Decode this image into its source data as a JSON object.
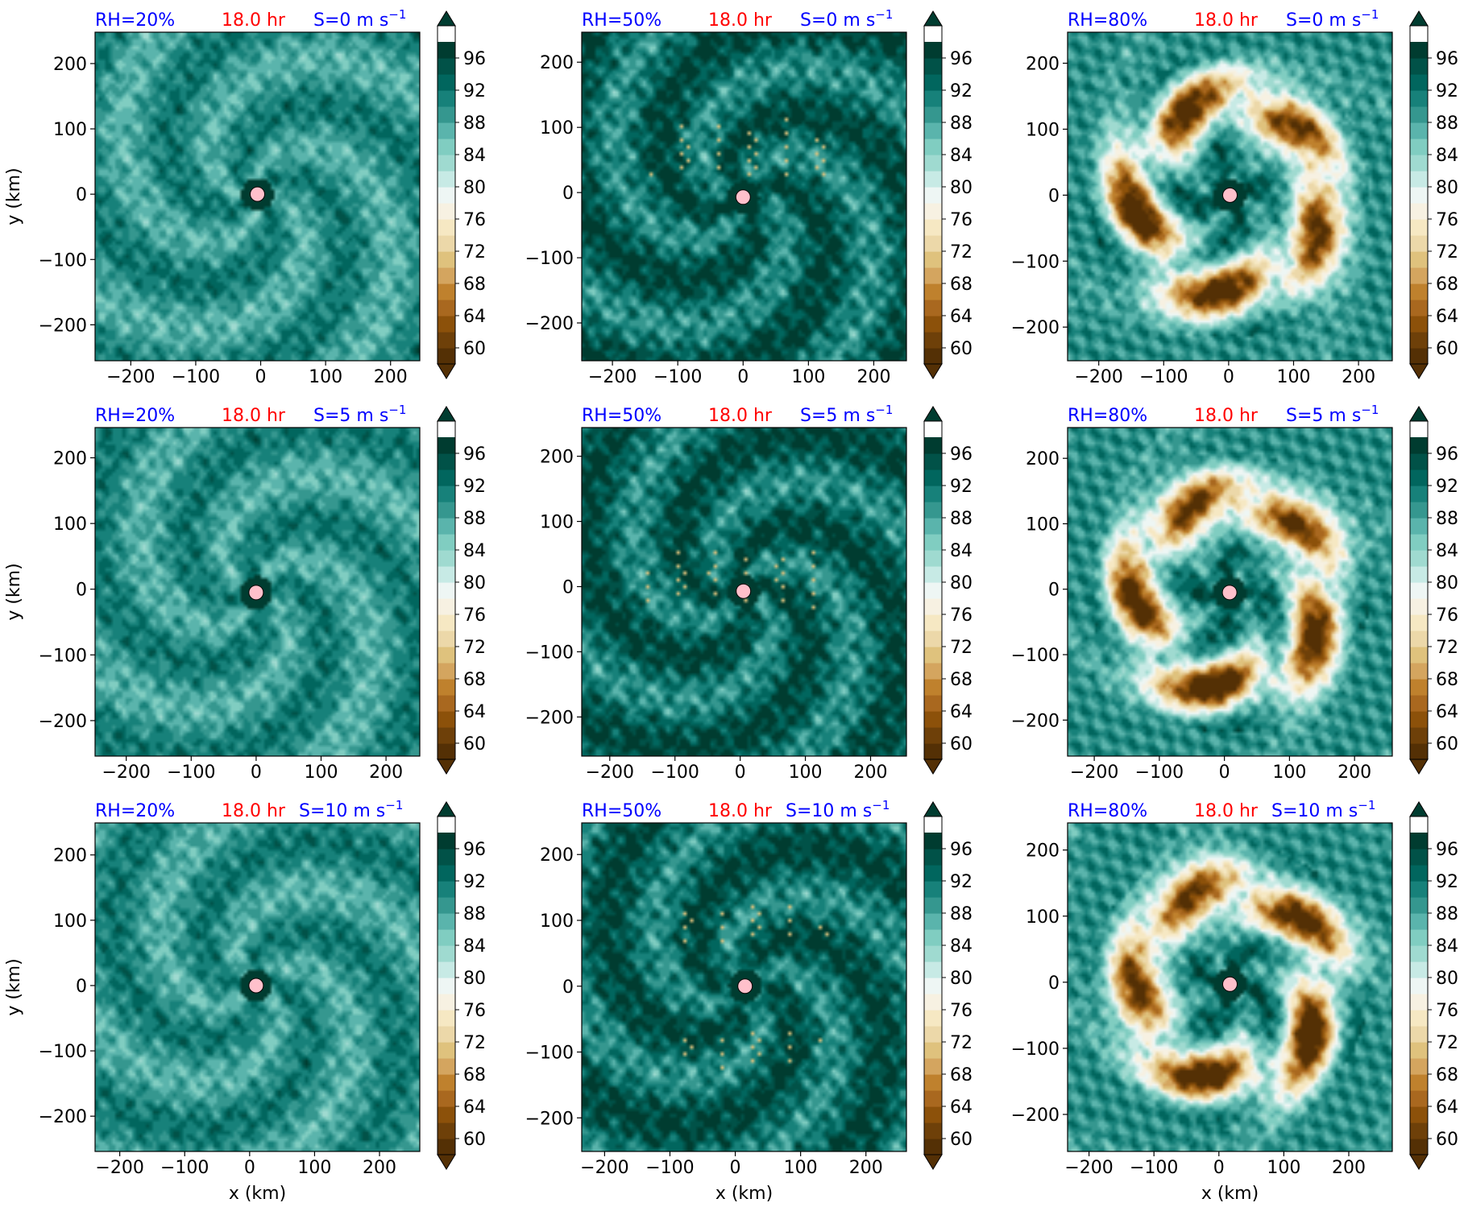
{
  "figure": {
    "colorbar_ticks": [
      60,
      64,
      68,
      72,
      76,
      80,
      84,
      88,
      92,
      96
    ],
    "colormap": [
      "#543005",
      "#6e4009",
      "#8c510a",
      "#a9681f",
      "#bf812d",
      "#d4a55f",
      "#dfc27d",
      "#ecd8a9",
      "#f6e8c3",
      "#f7f1e2",
      "#eef6f4",
      "#c7eae5",
      "#9fdad0",
      "#80cdc1",
      "#5ab4ac",
      "#35978f",
      "#17817a",
      "#01665e",
      "#015248",
      "#003c30"
    ],
    "colors": {
      "rh_label": "#0000ff",
      "time_label": "#ff0000",
      "shear_label": "#0000ff",
      "center_marker": "#ffc0cb"
    },
    "x_axis_label": "x (km)",
    "y_axis_label": "y (km)",
    "shear_unit_text": "m s",
    "shear_unit_exponent": "−1",
    "col_headers": [
      "RH=20%",
      "RH=50%",
      "RH=80%"
    ],
    "time_label": "18.0 hr",
    "row_headers": [
      "S=0",
      "S=5",
      "S=10"
    ]
  },
  "chart_data": [
    {
      "type": "heatmap",
      "rh": "RH=20%",
      "time": "18.0 hr",
      "shear": "S=0",
      "xlim": [
        -255,
        245
      ],
      "ylim": [
        -255,
        248
      ],
      "xticks": [
        -200,
        -100,
        0,
        100,
        200
      ],
      "yticks": [
        -200,
        -100,
        0,
        100,
        200
      ],
      "center": [
        -5,
        0
      ],
      "dry_ring": false
    },
    {
      "type": "heatmap",
      "rh": "RH=50%",
      "time": "18.0 hr",
      "shear": "S=0",
      "xlim": [
        -247,
        250
      ],
      "ylim": [
        -258,
        246
      ],
      "xticks": [
        -200,
        -100,
        0,
        100,
        200
      ],
      "yticks": [
        -200,
        -100,
        0,
        100,
        200
      ],
      "center": [
        0,
        -7
      ],
      "dry_ring": false
    },
    {
      "type": "heatmap",
      "rh": "RH=80%",
      "time": "18.0 hr",
      "shear": "S=0",
      "xlim": [
        -248,
        252
      ],
      "ylim": [
        -251,
        247
      ],
      "xticks": [
        -200,
        -100,
        0,
        100,
        200
      ],
      "yticks": [
        -200,
        -100,
        0,
        100,
        200
      ],
      "center": [
        2,
        0
      ],
      "dry_ring": true
    },
    {
      "type": "heatmap",
      "rh": "RH=20%",
      "time": "18.0 hr",
      "shear": "S=5",
      "xlim": [
        -248,
        252
      ],
      "ylim": [
        -254,
        246
      ],
      "xticks": [
        -200,
        -100,
        0,
        100,
        200
      ],
      "yticks": [
        -200,
        -100,
        0,
        100,
        200
      ],
      "center": [
        0,
        -5
      ],
      "dry_ring": false
    },
    {
      "type": "heatmap",
      "rh": "RH=50%",
      "time": "18.0 hr",
      "shear": "S=5",
      "xlim": [
        -243,
        255
      ],
      "ylim": [
        -260,
        244
      ],
      "xticks": [
        -200,
        -100,
        0,
        100,
        200
      ],
      "yticks": [
        -200,
        -100,
        0,
        100,
        200
      ],
      "center": [
        5,
        -7
      ],
      "dry_ring": false
    },
    {
      "type": "heatmap",
      "rh": "RH=80%",
      "time": "18.0 hr",
      "shear": "S=5",
      "xlim": [
        -241,
        258
      ],
      "ylim": [
        -255,
        247
      ],
      "xticks": [
        -200,
        -100,
        0,
        100,
        200
      ],
      "yticks": [
        -200,
        -100,
        0,
        100,
        200
      ],
      "center": [
        8,
        -5
      ],
      "dry_ring": true
    },
    {
      "type": "heatmap",
      "rh": "RH=20%",
      "time": "18.0 hr",
      "shear": "S=10",
      "xlim": [
        -238,
        262
      ],
      "ylim": [
        -254,
        249
      ],
      "xticks": [
        -200,
        -100,
        0,
        100,
        200
      ],
      "yticks": [
        -200,
        -100,
        0,
        100,
        200
      ],
      "center": [
        10,
        0
      ],
      "dry_ring": false
    },
    {
      "type": "heatmap",
      "rh": "RH=50%",
      "time": "18.0 hr",
      "shear": "S=10",
      "xlim": [
        -235,
        262
      ],
      "ylim": [
        -251,
        248
      ],
      "xticks": [
        -200,
        -100,
        0,
        100,
        200
      ],
      "yticks": [
        -200,
        -100,
        0,
        100,
        200
      ],
      "center": [
        15,
        0
      ],
      "dry_ring": false
    },
    {
      "type": "heatmap",
      "rh": "RH=80%",
      "time": "18.0 hr",
      "shear": "S=10",
      "xlim": [
        -233,
        267
      ],
      "ylim": [
        -256,
        241
      ],
      "xticks": [
        -200,
        -100,
        0,
        100,
        200
      ],
      "yticks": [
        -200,
        -100,
        0,
        100,
        200
      ],
      "center": [
        17,
        -3
      ],
      "dry_ring": true
    }
  ]
}
